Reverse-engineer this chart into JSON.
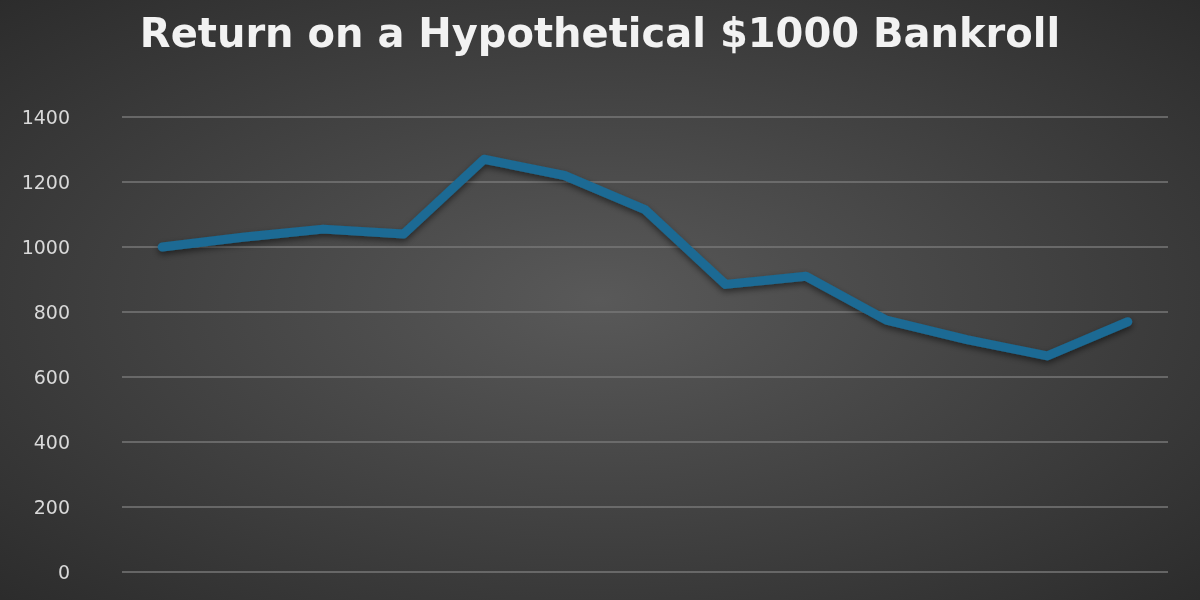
{
  "chart_data": {
    "type": "line",
    "title": "Return on a Hypothetical $1000 Bankroll",
    "categories": [
      null,
      null,
      null,
      null,
      null,
      null,
      null,
      null,
      null,
      null,
      null,
      null,
      null
    ],
    "series": [
      {
        "color": "#1a6a94",
        "values": [
          1000,
          1030,
          1055,
          1040,
          1270,
          1220,
          1115,
          885,
          910,
          775,
          715,
          665,
          770
        ]
      }
    ],
    "ylim": [
      0,
      1400
    ],
    "yticks": [
      0,
      200,
      400,
      600,
      800,
      1000,
      1200,
      1400
    ],
    "grid": "y",
    "line_style": "solid",
    "legend": false
  }
}
